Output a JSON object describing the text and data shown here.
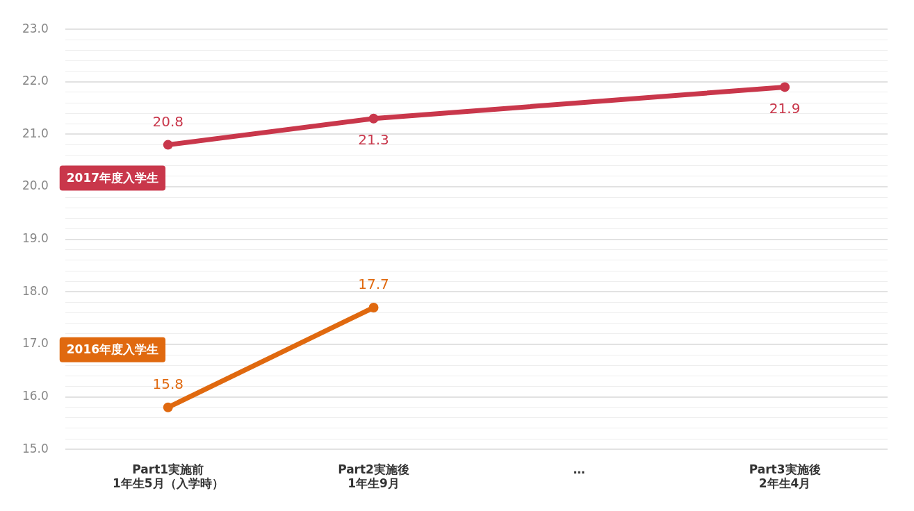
{
  "chart_data": {
    "type": "line",
    "categories": [
      "Part1実施前\n1年生5月（入学時）",
      "Part2実施後\n1年生9月",
      "…",
      "Part3実施後\n2年生4月"
    ],
    "series": [
      {
        "name": "2017年度入学生",
        "color": "#c9374b",
        "values": [
          20.8,
          21.3,
          null,
          21.9
        ]
      },
      {
        "name": "2016年度入学生",
        "color": "#e0690f",
        "values": [
          15.8,
          17.7,
          null,
          null
        ]
      }
    ],
    "ylim": [
      15,
      23
    ],
    "yticks": [
      {
        "value": 15,
        "label": "15.0"
      },
      {
        "value": 15.2,
        "label": null
      },
      {
        "value": 15.4,
        "label": null
      },
      {
        "value": 15.6,
        "label": null
      },
      {
        "value": 15.8,
        "label": null
      },
      {
        "value": 16,
        "label": "16.0"
      },
      {
        "value": 16.2,
        "label": null
      },
      {
        "value": 16.4,
        "label": null
      },
      {
        "value": 16.6,
        "label": null
      },
      {
        "value": 16.8,
        "label": null
      },
      {
        "value": 17,
        "label": "17.0"
      },
      {
        "value": 17.2,
        "label": null
      },
      {
        "value": 17.4,
        "label": null
      },
      {
        "value": 17.6,
        "label": null
      },
      {
        "value": 17.8,
        "label": null
      },
      {
        "value": 18,
        "label": "18.0"
      },
      {
        "value": 18.2,
        "label": null
      },
      {
        "value": 18.4,
        "label": null
      },
      {
        "value": 18.6,
        "label": null
      },
      {
        "value": 18.8,
        "label": null
      },
      {
        "value": 19,
        "label": "19.0"
      },
      {
        "value": 19.2,
        "label": null
      },
      {
        "value": 19.4,
        "label": null
      },
      {
        "value": 19.6,
        "label": null
      },
      {
        "value": 19.8,
        "label": null
      },
      {
        "value": 20,
        "label": "20.0"
      },
      {
        "value": 20.2,
        "label": null
      },
      {
        "value": 20.4,
        "label": null
      },
      {
        "value": 20.6,
        "label": null
      },
      {
        "value": 20.8,
        "label": null
      },
      {
        "value": 21,
        "label": "21.0"
      },
      {
        "value": 21.2,
        "label": null
      },
      {
        "value": 21.4,
        "label": null
      },
      {
        "value": 21.6,
        "label": null
      },
      {
        "value": 21.8,
        "label": null
      },
      {
        "value": 22,
        "label": "22.0"
      },
      {
        "value": 22.2,
        "label": null
      },
      {
        "value": 22.4,
        "label": null
      },
      {
        "value": 22.6,
        "label": null
      },
      {
        "value": 22.8,
        "label": null
      },
      {
        "value": 23,
        "label": "23.0"
      }
    ],
    "grid": "y",
    "legend": false,
    "marker": "circle",
    "line_style": "solid",
    "data_labels": true
  }
}
